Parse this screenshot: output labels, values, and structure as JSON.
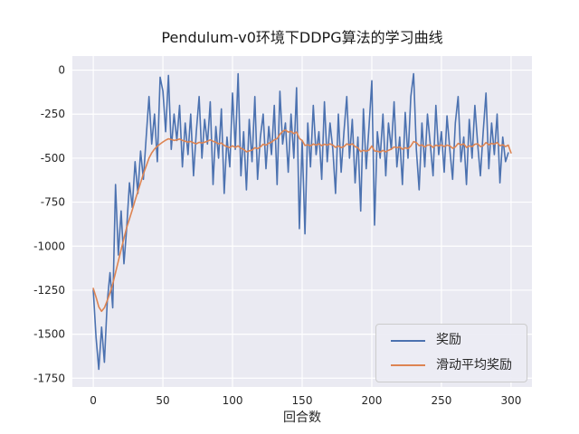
{
  "chart_data": {
    "type": "line",
    "title": "Pendulum-v0环境下DDPG算法的学习曲线",
    "xlabel": "回合数",
    "ylabel": "",
    "xlim": [
      -15,
      315
    ],
    "ylim": [
      -1800,
      80
    ],
    "xticks": [
      0,
      50,
      100,
      150,
      200,
      250,
      300
    ],
    "yticks": [
      0,
      -250,
      -500,
      -750,
      -1000,
      -1250,
      -1500,
      -1750
    ],
    "grid": true,
    "legend_position": "lower right",
    "background": "#eaeaf2",
    "grid_color": "#ffffff",
    "tick_label_color": "#262626",
    "x": [
      0,
      2,
      4,
      6,
      8,
      10,
      12,
      14,
      16,
      18,
      20,
      22,
      24,
      26,
      28,
      30,
      32,
      34,
      36,
      38,
      40,
      42,
      44,
      46,
      48,
      50,
      52,
      54,
      56,
      58,
      60,
      62,
      64,
      66,
      68,
      70,
      72,
      74,
      76,
      78,
      80,
      82,
      84,
      86,
      88,
      90,
      92,
      94,
      96,
      98,
      100,
      102,
      104,
      106,
      108,
      110,
      112,
      114,
      116,
      118,
      120,
      122,
      124,
      126,
      128,
      130,
      132,
      134,
      136,
      138,
      140,
      142,
      144,
      146,
      148,
      150,
      152,
      154,
      156,
      158,
      160,
      162,
      164,
      166,
      168,
      170,
      172,
      174,
      176,
      178,
      180,
      182,
      184,
      186,
      188,
      190,
      192,
      194,
      196,
      198,
      200,
      202,
      204,
      206,
      208,
      210,
      212,
      214,
      216,
      218,
      220,
      222,
      224,
      226,
      228,
      230,
      232,
      234,
      236,
      238,
      240,
      242,
      244,
      246,
      248,
      250,
      252,
      254,
      256,
      258,
      260,
      262,
      264,
      266,
      268,
      270,
      272,
      274,
      276,
      278,
      280,
      282,
      284,
      286,
      288,
      290,
      292,
      294,
      296,
      298,
      300
    ],
    "series": [
      {
        "id": "reward",
        "name": "奖励",
        "color": "#4C72B0",
        "values": [
          -1250,
          -1520,
          -1700,
          -1460,
          -1660,
          -1320,
          -1150,
          -1350,
          -650,
          -1050,
          -800,
          -1100,
          -900,
          -640,
          -780,
          -520,
          -700,
          -460,
          -620,
          -380,
          -150,
          -420,
          -250,
          -520,
          -40,
          -120,
          -350,
          -30,
          -450,
          -250,
          -400,
          -200,
          -550,
          -300,
          -480,
          -250,
          -600,
          -350,
          -150,
          -500,
          -280,
          -420,
          -180,
          -650,
          -320,
          -500,
          -220,
          -700,
          -380,
          -550,
          -130,
          -450,
          -20,
          -600,
          -350,
          -680,
          -280,
          -520,
          -150,
          -620,
          -380,
          -250,
          -560,
          -320,
          -480,
          -200,
          -650,
          -120,
          -420,
          -300,
          -580,
          -250,
          -500,
          -100,
          -900,
          -400,
          -930,
          -300,
          -550,
          -200,
          -480,
          -350,
          -620,
          -180,
          -520,
          -300,
          -450,
          -700,
          -250,
          -580,
          -350,
          -150,
          -500,
          -280,
          -640,
          -380,
          -800,
          -220,
          -560,
          -320,
          -60,
          -880,
          -350,
          -500,
          -250,
          -600,
          -300,
          -450,
          -180,
          -550,
          -380,
          -650,
          -240,
          -500,
          -150,
          -20,
          -450,
          -680,
          -300,
          -550,
          -250,
          -420,
          -600,
          -200,
          -480,
          -350,
          -580,
          -260,
          -450,
          -620,
          -300,
          -150,
          -520,
          -380,
          -650,
          -280,
          -500,
          -200,
          -420,
          -600,
          -350,
          -130,
          -560,
          -300,
          -480,
          -250,
          -640,
          -380,
          -520,
          -470
        ]
      },
      {
        "id": "moving-average",
        "name": "滑动平均奖励",
        "color": "#DD8452",
        "values": [
          -1240,
          -1290,
          -1345,
          -1370,
          -1350,
          -1310,
          -1265,
          -1215,
          -1150,
          -1085,
          -1020,
          -955,
          -895,
          -845,
          -795,
          -740,
          -690,
          -640,
          -590,
          -545,
          -500,
          -470,
          -448,
          -432,
          -420,
          -408,
          -398,
          -390,
          -394,
          -399,
          -396,
          -391,
          -399,
          -404,
          -409,
          -405,
          -413,
          -418,
          -410,
          -414,
          -409,
          -404,
          -396,
          -404,
          -410,
          -419,
          -414,
          -428,
          -434,
          -440,
          -430,
          -439,
          -430,
          -444,
          -450,
          -464,
          -459,
          -454,
          -441,
          -446,
          -436,
          -421,
          -426,
          -415,
          -409,
          -396,
          -389,
          -365,
          -348,
          -340,
          -352,
          -348,
          -360,
          -352,
          -388,
          -400,
          -428,
          -424,
          -430,
          -420,
          -426,
          -419,
          -429,
          -421,
          -426,
          -419,
          -426,
          -439,
          -430,
          -440,
          -434,
          -419,
          -425,
          -419,
          -434,
          -441,
          -463,
          -455,
          -461,
          -454,
          -431,
          -459,
          -461,
          -466,
          -456,
          -464,
          -455,
          -449,
          -436,
          -441,
          -436,
          -449,
          -441,
          -446,
          -431,
          -406,
          -411,
          -429,
          -425,
          -436,
          -426,
          -425,
          -439,
          -426,
          -431,
          -425,
          -434,
          -426,
          -430,
          -444,
          -436,
          -416,
          -425,
          -419,
          -439,
          -430,
          -435,
          -421,
          -419,
          -434,
          -429,
          -411,
          -424,
          -416,
          -421,
          -411,
          -429,
          -424,
          -434,
          -426,
          -470
        ]
      }
    ]
  }
}
